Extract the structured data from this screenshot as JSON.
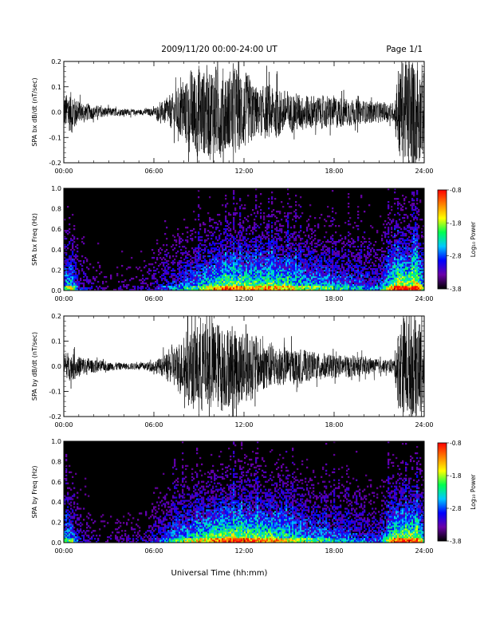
{
  "header": {
    "title": "2009/11/20  00:00-24:00 UT",
    "page": "Page 1/1"
  },
  "xaxis": {
    "label": "Universal Time (hh:mm)",
    "ticks": [
      "00:00",
      "06:00",
      "12:00",
      "18:00",
      "24:00"
    ],
    "range_hours": [
      0,
      24
    ]
  },
  "colors": {
    "background": "#ffffff",
    "trace": "#000000",
    "spectrogram_floor": "#000000"
  },
  "colorbar": {
    "label": "Log₁₀ Power",
    "ticks": [
      "-0.8",
      "-1.8",
      "-2.8",
      "-3.8"
    ],
    "range": [
      -3.8,
      -0.8
    ],
    "stops": [
      "#000000",
      "#6a00a8",
      "#0000ff",
      "#00c8ff",
      "#00ff50",
      "#ffff00",
      "#ff8000",
      "#ff0000"
    ]
  },
  "chart_data": [
    {
      "type": "line",
      "title": "",
      "ylabel": "SPA bx dB/dt (nT/sec)",
      "ylim": [
        -0.2,
        0.2
      ],
      "yticks": [
        "-0.2",
        "-0.1",
        "0.0",
        "0.1",
        "0.2"
      ],
      "x_unit": "hours UT",
      "envelope": {
        "x": [
          0,
          0.5,
          1,
          2,
          3,
          4,
          5,
          5.5,
          6,
          6.5,
          7,
          7.5,
          8,
          8.5,
          9,
          9.5,
          10,
          10.5,
          11,
          11.5,
          12,
          12.5,
          13,
          13.5,
          14,
          15,
          16,
          17,
          18,
          19,
          20,
          21,
          22,
          22.3,
          22.6,
          23,
          23.5,
          24
        ],
        "amplitude": [
          0.08,
          0.1,
          0.05,
          0.03,
          0.02,
          0.015,
          0.012,
          0.015,
          0.02,
          0.04,
          0.07,
          0.09,
          0.15,
          0.18,
          0.22,
          0.2,
          0.22,
          0.2,
          0.18,
          0.2,
          0.17,
          0.15,
          0.1,
          0.12,
          0.12,
          0.09,
          0.08,
          0.07,
          0.07,
          0.06,
          0.05,
          0.045,
          0.04,
          0.22,
          0.25,
          0.25,
          0.25,
          0.2
        ]
      }
    },
    {
      "type": "heatmap",
      "title": "",
      "ylabel": "SPA bx Freq (Hz)",
      "ylim": [
        0,
        1.0
      ],
      "yticks": [
        "0.0",
        "0.2",
        "0.4",
        "0.6",
        "0.8",
        "1.0"
      ],
      "value_range": [
        -3.8,
        -0.8
      ],
      "activity": {
        "x": [
          0,
          0.5,
          1,
          2,
          3,
          4,
          5,
          6,
          7,
          8,
          9,
          10,
          11,
          12,
          13,
          14,
          15,
          16,
          17,
          18,
          19,
          20,
          21,
          22,
          22.5,
          23,
          23.5,
          24
        ],
        "level": [
          0.55,
          0.7,
          0.3,
          0.18,
          0.15,
          0.15,
          0.18,
          0.25,
          0.35,
          0.5,
          0.6,
          0.75,
          0.85,
          0.8,
          0.75,
          0.8,
          0.75,
          0.65,
          0.6,
          0.55,
          0.5,
          0.45,
          0.4,
          0.85,
          0.95,
          0.9,
          0.95,
          0.6
        ]
      }
    },
    {
      "type": "line",
      "title": "",
      "ylabel": "SPA by dB/dt (nT/sec)",
      "ylim": [
        -0.2,
        0.2
      ],
      "yticks": [
        "-0.2",
        "-0.1",
        "0.0",
        "0.1",
        "0.2"
      ],
      "x_unit": "hours UT",
      "envelope": {
        "x": [
          0,
          0.5,
          1,
          2,
          3,
          4,
          5,
          5.5,
          6,
          6.5,
          7,
          7.5,
          8,
          8.5,
          9,
          9.5,
          10,
          10.5,
          11,
          11.5,
          12,
          12.5,
          13,
          13.5,
          14,
          15,
          16,
          17,
          18,
          19,
          20,
          21,
          22,
          22.3,
          22.6,
          23,
          23.5,
          24
        ],
        "amplitude": [
          0.06,
          0.06,
          0.05,
          0.03,
          0.02,
          0.015,
          0.015,
          0.02,
          0.025,
          0.04,
          0.07,
          0.1,
          0.14,
          0.18,
          0.22,
          0.2,
          0.22,
          0.2,
          0.18,
          0.2,
          0.17,
          0.15,
          0.12,
          0.12,
          0.1,
          0.08,
          0.07,
          0.06,
          0.05,
          0.05,
          0.04,
          0.03,
          0.03,
          0.2,
          0.25,
          0.25,
          0.25,
          0.2
        ]
      }
    },
    {
      "type": "heatmap",
      "title": "",
      "ylabel": "SPA by Freq (Hz)",
      "ylim": [
        0,
        1.0
      ],
      "yticks": [
        "0.0",
        "0.2",
        "0.4",
        "0.6",
        "0.8",
        "1.0"
      ],
      "value_range": [
        -3.8,
        -0.8
      ],
      "activity": {
        "x": [
          0,
          0.5,
          1,
          2,
          3,
          4,
          5,
          6,
          7,
          8,
          9,
          10,
          11,
          12,
          13,
          14,
          15,
          16,
          17,
          18,
          19,
          20,
          21,
          22,
          22.5,
          23,
          23.5,
          24
        ],
        "level": [
          0.5,
          0.6,
          0.3,
          0.18,
          0.15,
          0.15,
          0.2,
          0.3,
          0.45,
          0.6,
          0.7,
          0.8,
          0.9,
          0.85,
          0.8,
          0.8,
          0.7,
          0.6,
          0.55,
          0.5,
          0.45,
          0.4,
          0.35,
          0.85,
          0.9,
          0.85,
          0.9,
          0.55
        ]
      }
    }
  ]
}
